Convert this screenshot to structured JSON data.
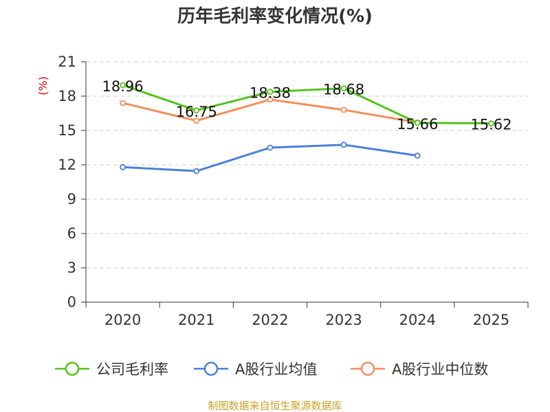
{
  "chart_data": {
    "type": "line",
    "title": "历年毛利率变化情况(%)",
    "ylabel": "(%)",
    "ylabel_color": "#cc0000",
    "categories": [
      "2020",
      "2021",
      "2022",
      "2023",
      "2024",
      "2025"
    ],
    "ylim": [
      0,
      21
    ],
    "yticks": [
      0,
      3,
      6,
      9,
      12,
      15,
      18,
      21
    ],
    "grid": true,
    "legend_position": "bottom",
    "series": [
      {
        "name": "公司毛利率",
        "color": "#52c41a",
        "values": [
          18.96,
          16.75,
          18.38,
          18.68,
          15.66,
          15.62
        ],
        "labels": [
          "18.96",
          "16.75",
          "18.38",
          "18.68",
          "15.66",
          "15.62"
        ]
      },
      {
        "name": "A股行业均值",
        "color": "#4a7fd8",
        "values": [
          11.8,
          11.45,
          13.5,
          13.75,
          12.8,
          null
        ]
      },
      {
        "name": "A股行业中位数",
        "color": "#f58d5c",
        "values": [
          17.4,
          15.85,
          17.7,
          16.8,
          15.7,
          null
        ]
      }
    ]
  },
  "footer": {
    "text": "制图数据来自恒生聚源数据库",
    "color": "#c9a227"
  }
}
